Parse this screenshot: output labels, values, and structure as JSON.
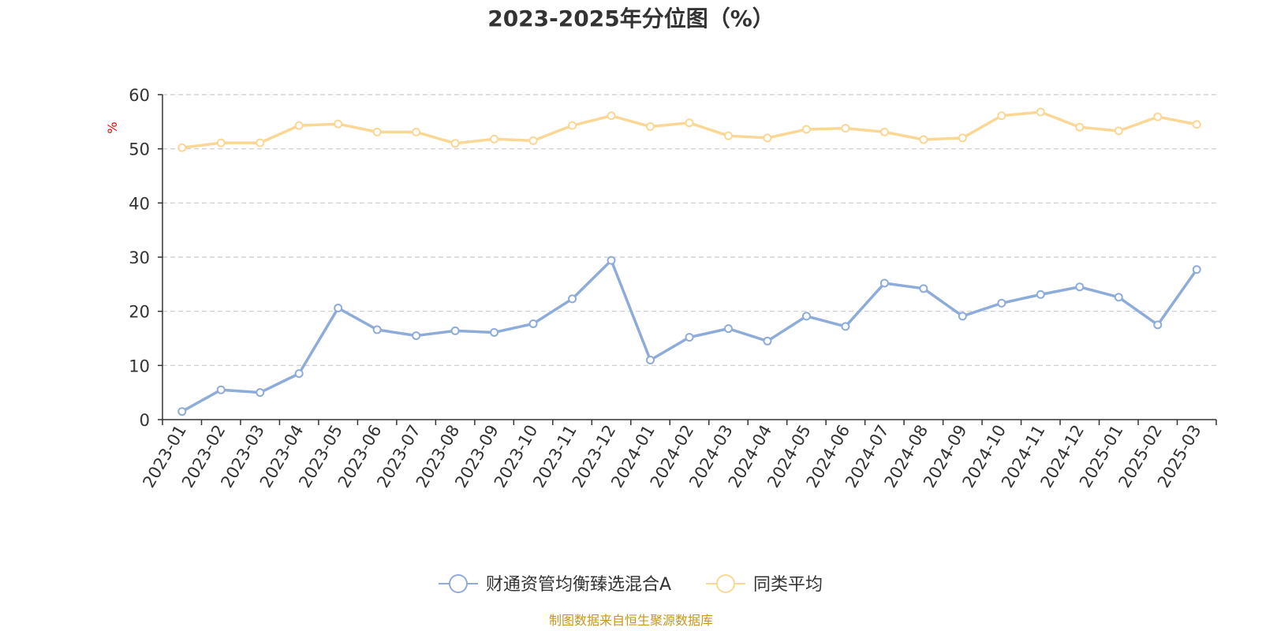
{
  "chart_data": {
    "type": "line",
    "title": "2023-2025年分位图（%）",
    "ylabel": "%",
    "ylim": [
      0,
      60
    ],
    "yticks": [
      0,
      10,
      20,
      30,
      40,
      50,
      60
    ],
    "grid": true,
    "legend_position": "bottom-center",
    "categories": [
      "2023-01",
      "2023-02",
      "2023-03",
      "2023-04",
      "2023-05",
      "2023-06",
      "2023-07",
      "2023-08",
      "2023-09",
      "2023-10",
      "2023-11",
      "2023-12",
      "2024-01",
      "2024-02",
      "2024-03",
      "2024-04",
      "2024-05",
      "2024-06",
      "2024-07",
      "2024-08",
      "2024-09",
      "2024-10",
      "2024-11",
      "2024-12",
      "2025-01",
      "2025-02",
      "2025-03"
    ],
    "series": [
      {
        "name": "财通资管均衡臻选混合A",
        "color": "#8eacd9",
        "values": [
          1.5,
          5.5,
          5.0,
          8.5,
          20.6,
          16.6,
          15.5,
          16.4,
          16.1,
          17.7,
          22.3,
          29.4,
          11.0,
          15.2,
          16.8,
          14.5,
          19.1,
          17.2,
          25.2,
          24.2,
          19.1,
          21.5,
          23.1,
          24.5,
          22.6,
          17.5,
          27.7
        ]
      },
      {
        "name": "同类平均",
        "color": "#fad795",
        "values": [
          50.2,
          51.1,
          51.1,
          54.3,
          54.6,
          53.1,
          53.1,
          51.0,
          51.8,
          51.5,
          54.3,
          56.1,
          54.1,
          54.8,
          52.4,
          52.0,
          53.6,
          53.8,
          53.1,
          51.7,
          52.0,
          56.1,
          56.8,
          54.0,
          53.3,
          55.9,
          54.5
        ]
      }
    ]
  },
  "footer": {
    "source": "制图数据来自恒生聚源数据库"
  }
}
